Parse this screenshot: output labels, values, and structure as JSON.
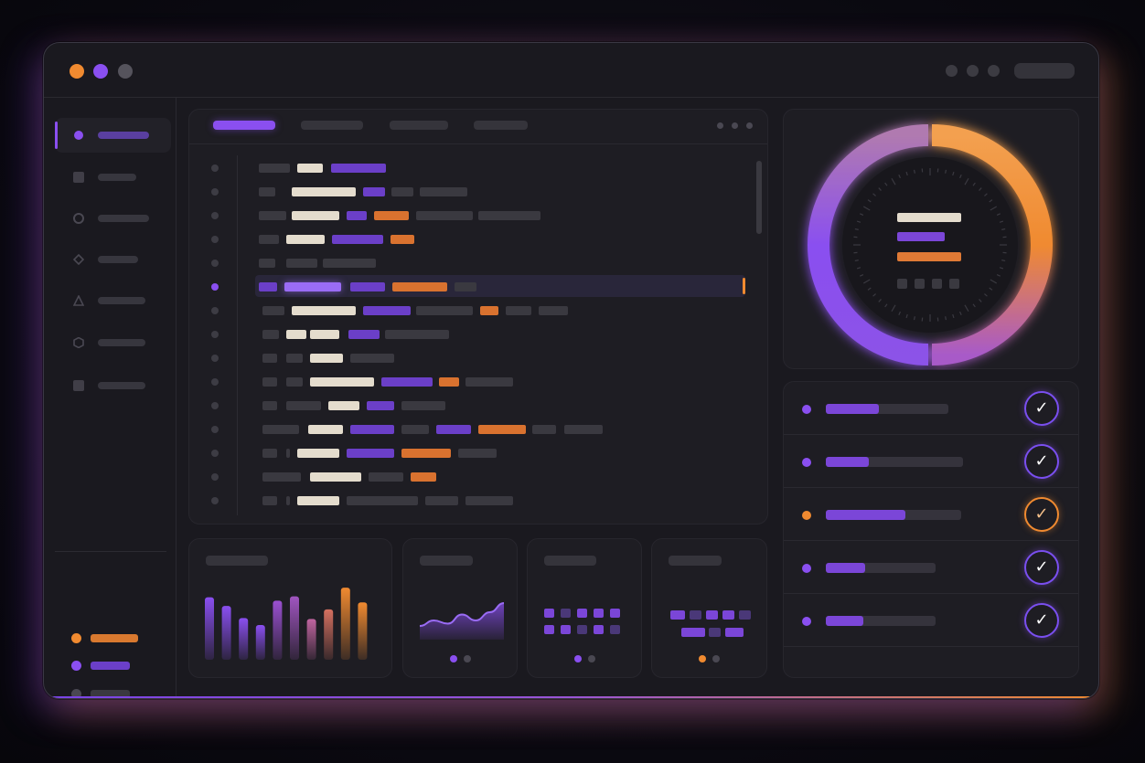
{
  "window": {
    "traffic_lights": [
      {
        "name": "close",
        "color": "#f08a30"
      },
      {
        "name": "minimize",
        "color": "#8a4ff0"
      },
      {
        "name": "maximize",
        "color": "#55535c"
      }
    ]
  },
  "sidebar": {
    "items": [
      {
        "icon": "circle-dot-icon",
        "active": true
      },
      {
        "icon": "square-icon",
        "active": false
      },
      {
        "icon": "ring-icon",
        "active": false
      },
      {
        "icon": "diamond-icon",
        "active": false
      },
      {
        "icon": "triangle-icon",
        "active": false
      },
      {
        "icon": "hexagon-icon",
        "active": false
      },
      {
        "icon": "square-icon",
        "active": false
      }
    ],
    "legend": [
      {
        "color": "#f08a30"
      },
      {
        "color": "#8a4ff0"
      },
      {
        "color": "#4a4852"
      }
    ]
  },
  "editor": {
    "active_tab_index": 0,
    "tab_count": 4,
    "active_line_index": 5,
    "line_count": 15
  },
  "gauge": {
    "progress": 0.5,
    "colors": {
      "start": "#8a4ff0",
      "end": "#f08a30"
    }
  },
  "tasks": [
    {
      "status_color": "#8a4ff0",
      "progress": 0.43,
      "done": true,
      "check_color": "#7a4ff0"
    },
    {
      "status_color": "#8a4ff0",
      "progress": 0.31,
      "done": true,
      "check_color": "#7a4ff0"
    },
    {
      "status_color": "#f08a30",
      "progress": 0.59,
      "done": true,
      "check_color": "#f08a30"
    },
    {
      "status_color": "#8a4ff0",
      "progress": 0.36,
      "done": true,
      "check_color": "#7a4ff0"
    },
    {
      "status_color": "#8a4ff0",
      "progress": 0.34,
      "done": true,
      "check_color": "#7a4ff0"
    }
  ],
  "widgets": {
    "bar_chart": {
      "values": [
        0.72,
        0.62,
        0.48,
        0.4,
        0.68,
        0.73,
        0.47,
        0.58,
        0.83,
        0.66
      ],
      "colors": [
        "#8a4ff0",
        "#8a4ff0",
        "#8a4ff0",
        "#8a4ff0",
        "#9a50d0",
        "#a055c0",
        "#c065a0",
        "#d57060",
        "#f08a30",
        "#f08a30"
      ]
    },
    "line_chart": {
      "values": [
        0.3,
        0.42,
        0.35,
        0.55,
        0.42,
        0.6,
        0.8
      ],
      "page_dots": 2,
      "active_page": 0
    },
    "grid_a": {
      "page_dots": 2,
      "active_page": 0
    },
    "grid_b": {
      "page_dots": 2,
      "active_page": 0,
      "active_color": "#f08a30"
    }
  },
  "accent": {
    "purple": "#8a4ff0",
    "orange": "#f08a30"
  }
}
